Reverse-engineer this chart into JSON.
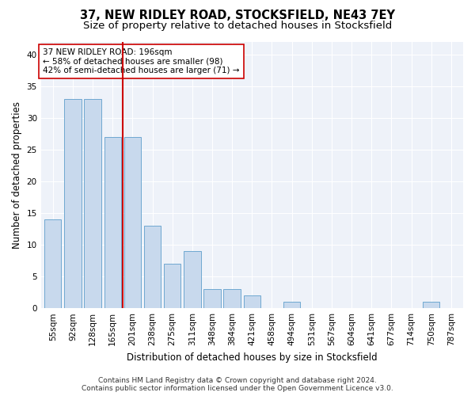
{
  "title1": "37, NEW RIDLEY ROAD, STOCKSFIELD, NE43 7EY",
  "title2": "Size of property relative to detached houses in Stocksfield",
  "xlabel": "Distribution of detached houses by size in Stocksfield",
  "ylabel": "Number of detached properties",
  "categories": [
    "55sqm",
    "92sqm",
    "128sqm",
    "165sqm",
    "201sqm",
    "238sqm",
    "275sqm",
    "311sqm",
    "348sqm",
    "384sqm",
    "421sqm",
    "458sqm",
    "494sqm",
    "531sqm",
    "567sqm",
    "604sqm",
    "641sqm",
    "677sqm",
    "714sqm",
    "750sqm",
    "787sqm"
  ],
  "values": [
    14,
    33,
    33,
    27,
    27,
    13,
    7,
    9,
    3,
    3,
    2,
    0,
    1,
    0,
    0,
    0,
    0,
    0,
    0,
    1,
    0
  ],
  "bar_color": "#c8d9ed",
  "bar_edge_color": "#6fa8d0",
  "reference_line_color": "#cc0000",
  "reference_line_index": 4,
  "annotation_text": "37 NEW RIDLEY ROAD: 196sqm\n← 58% of detached houses are smaller (98)\n42% of semi-detached houses are larger (71) →",
  "annotation_box_color": "white",
  "annotation_box_edge_color": "#cc0000",
  "ylim": [
    0,
    42
  ],
  "yticks": [
    0,
    5,
    10,
    15,
    20,
    25,
    30,
    35,
    40
  ],
  "footer_line1": "Contains HM Land Registry data © Crown copyright and database right 2024.",
  "footer_line2": "Contains public sector information licensed under the Open Government Licence v3.0.",
  "bg_color": "#ffffff",
  "plot_bg_color": "#eef2f9",
  "grid_color": "#ffffff",
  "title1_fontsize": 10.5,
  "title2_fontsize": 9.5,
  "axis_label_fontsize": 8.5,
  "tick_fontsize": 7.5,
  "annotation_fontsize": 7.5,
  "footer_fontsize": 6.5
}
